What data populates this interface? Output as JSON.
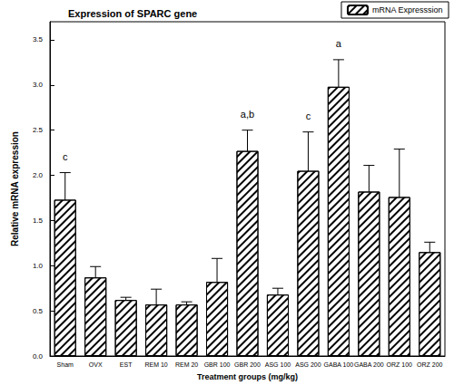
{
  "chart_data": {
    "type": "bar",
    "title": "Expression of SPARC gene",
    "x_label": "Treatment groups (mg/kg)",
    "y_label": "Relative mRNA expression",
    "categories": [
      "Sham",
      "OVX",
      "EST",
      "REM 10",
      "REM 20",
      "GBR 100",
      "GBR 200",
      "ASG 100",
      "ASG 200",
      "GABA 100",
      "GABA 200",
      "ORZ 100",
      "ORZ 200"
    ],
    "series": [
      {
        "name": "mRNA Expresssion",
        "color": "#000000",
        "values": [
          1.73,
          0.87,
          0.62,
          0.57,
          0.57,
          0.82,
          2.27,
          0.68,
          2.05,
          2.98,
          1.82,
          1.76,
          1.15
        ],
        "errors": [
          0.3,
          0.12,
          0.03,
          0.17,
          0.03,
          0.26,
          0.23,
          0.07,
          0.43,
          0.3,
          0.29,
          0.53,
          0.11
        ]
      }
    ],
    "annotations": [
      {
        "category": "Sham",
        "text": "c"
      },
      {
        "category": "GBR 200",
        "text": "a,b"
      },
      {
        "category": "ASG 200",
        "text": "c"
      },
      {
        "category": "GABA 100",
        "text": "a"
      }
    ],
    "ylim": [
      0,
      3.7
    ],
    "yticks": [
      {
        "value": 0,
        "label": "0.0"
      },
      0.5,
      {
        "value": 1,
        "label": "1.0"
      },
      1.5,
      {
        "value": 2,
        "label": "2.0"
      },
      2.5,
      {
        "value": 3,
        "label": "3.0"
      },
      3.5
    ],
    "grid": false,
    "legend": "upper right"
  }
}
